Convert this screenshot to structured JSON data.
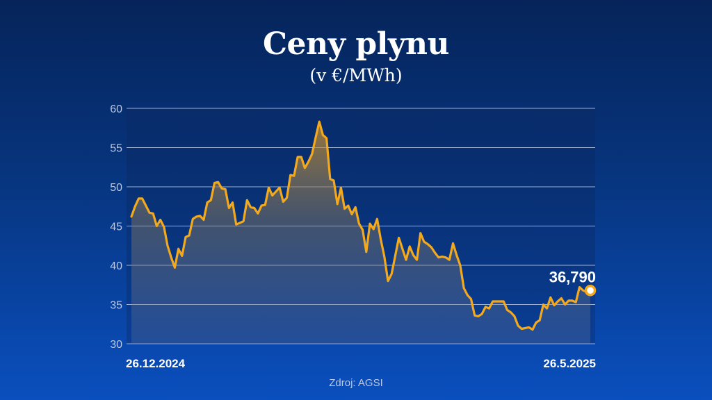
{
  "colors": {
    "line": "#f2a91e",
    "grid": "#b8c6e2",
    "tick_text": "#b9c8e6",
    "marker_fill": "#ffffff",
    "marker_stroke": "#f2a91e"
  },
  "footer": {
    "source": "Zdroj: AGSI"
  },
  "chart_data": {
    "type": "area",
    "title": "Ceny plynu",
    "subtitle": "(v €/MWh)",
    "xlabel": "",
    "ylabel": "",
    "x_start_label": "26.12.2024",
    "x_end_label": "26.5.2025",
    "ylim": [
      30,
      60
    ],
    "yticks": [
      30,
      35,
      40,
      45,
      50,
      55,
      60
    ],
    "ytick_labels": [
      "30",
      "35",
      "40",
      "45",
      "50",
      "55",
      "60"
    ],
    "grid": true,
    "last_value_label": "36,790",
    "series": [
      {
        "values": [
          46.2,
          47.5,
          48.5,
          48.5,
          47.6,
          46.7,
          46.6,
          45.0,
          45.8,
          44.9,
          42.5,
          41.0,
          39.7,
          42.1,
          41.2,
          43.6,
          43.8,
          45.9,
          46.2,
          46.3,
          45.8,
          48.0,
          48.3,
          50.5,
          50.6,
          49.8,
          49.7,
          47.3,
          48.0,
          45.2,
          45.4,
          45.6,
          48.3,
          47.4,
          47.3,
          46.6,
          47.6,
          47.7,
          49.9,
          48.9,
          49.4,
          49.9,
          48.1,
          48.6,
          51.5,
          51.4,
          53.8,
          53.8,
          52.4,
          53.2,
          54.2,
          56.3,
          58.3,
          56.6,
          56.2,
          51.0,
          50.8,
          47.8,
          49.9,
          47.2,
          47.6,
          46.5,
          47.4,
          45.3,
          44.5,
          41.7,
          45.3,
          44.6,
          45.9,
          43.3,
          41.1,
          38.0,
          38.9,
          41.2,
          43.5,
          42.1,
          40.7,
          42.4,
          41.3,
          40.7,
          44.1,
          43.0,
          42.7,
          42.3,
          41.6,
          41.0,
          41.1,
          41.0,
          40.7,
          42.8,
          41.3,
          40.0,
          37.1,
          36.2,
          35.7,
          33.6,
          33.5,
          33.8,
          34.7,
          34.5,
          35.4,
          35.4,
          35.4,
          35.4,
          34.3,
          34.0,
          33.5,
          32.3,
          31.9,
          32.0,
          32.1,
          31.8,
          32.7,
          33.0,
          35.0,
          34.5,
          35.9,
          34.9,
          35.4,
          35.8,
          35.0,
          35.5,
          35.5,
          35.3,
          37.2,
          36.8,
          36.6,
          36.79
        ]
      }
    ]
  }
}
